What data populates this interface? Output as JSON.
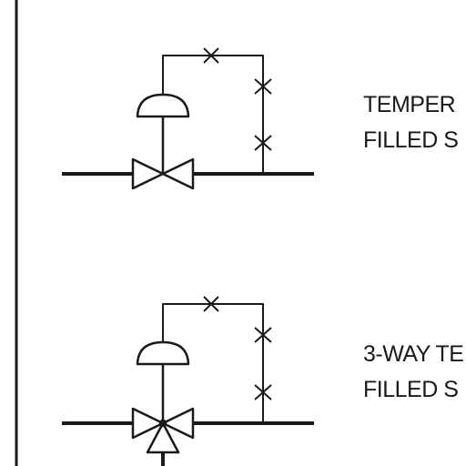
{
  "symbols": [
    {
      "id": "temperature-regulator",
      "label_lines": [
        "TEMPER",
        "FILLED S"
      ]
    },
    {
      "id": "three-way-temperature-regulator",
      "label_lines": [
        "3-WAY TE",
        "FILLED S"
      ]
    }
  ],
  "colors": {
    "line": "#1a1a1a",
    "background": "#ffffff"
  }
}
